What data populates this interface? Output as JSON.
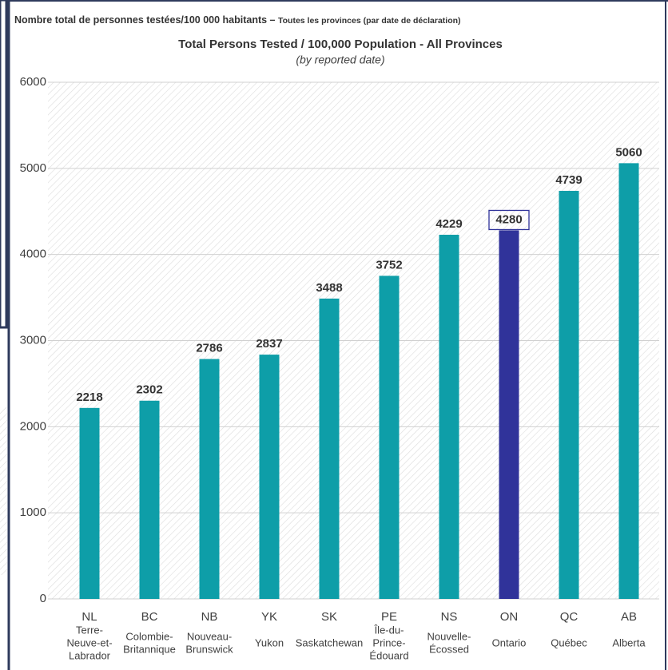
{
  "chart_data": {
    "type": "bar",
    "title_fr": "Nombre total de personnes testées/100 000 habitants –",
    "title_fr_sub": "Toutes les provinces (par date de déclaration)",
    "title": "Total Persons Tested / 100,000 Population - All Provinces",
    "subtitle": "(by reported date)",
    "categories": [
      "NL",
      "BC",
      "NB",
      "YK",
      "SK",
      "PE",
      "NS",
      "ON",
      "QC",
      "AB"
    ],
    "sublabels": [
      [
        "Terre-",
        "Neuve-et-",
        "Labrador"
      ],
      [
        "Colombie-",
        "Britannique"
      ],
      [
        "Nouveau-",
        "Brunswick"
      ],
      [
        "Yukon"
      ],
      [
        "Saskatchewan"
      ],
      [
        "Île-du-",
        "Prince-",
        "Édouard"
      ],
      [
        "Nouvelle-",
        "Écossed"
      ],
      [
        "Ontario"
      ],
      [
        "Québec"
      ],
      [
        "Alberta"
      ]
    ],
    "values": [
      2218,
      2302,
      2786,
      2837,
      3488,
      3752,
      4229,
      4280,
      4739,
      5060
    ],
    "colors": [
      "#0e9ea8",
      "#0e9ea8",
      "#0e9ea8",
      "#0e9ea8",
      "#0e9ea8",
      "#0e9ea8",
      "#0e9ea8",
      "#30339a",
      "#0e9ea8",
      "#0e9ea8"
    ],
    "highlight_index": 7,
    "ylim": [
      0,
      6000
    ],
    "yticks": [
      0,
      1000,
      2000,
      3000,
      4000,
      5000,
      6000
    ],
    "grid": true
  }
}
